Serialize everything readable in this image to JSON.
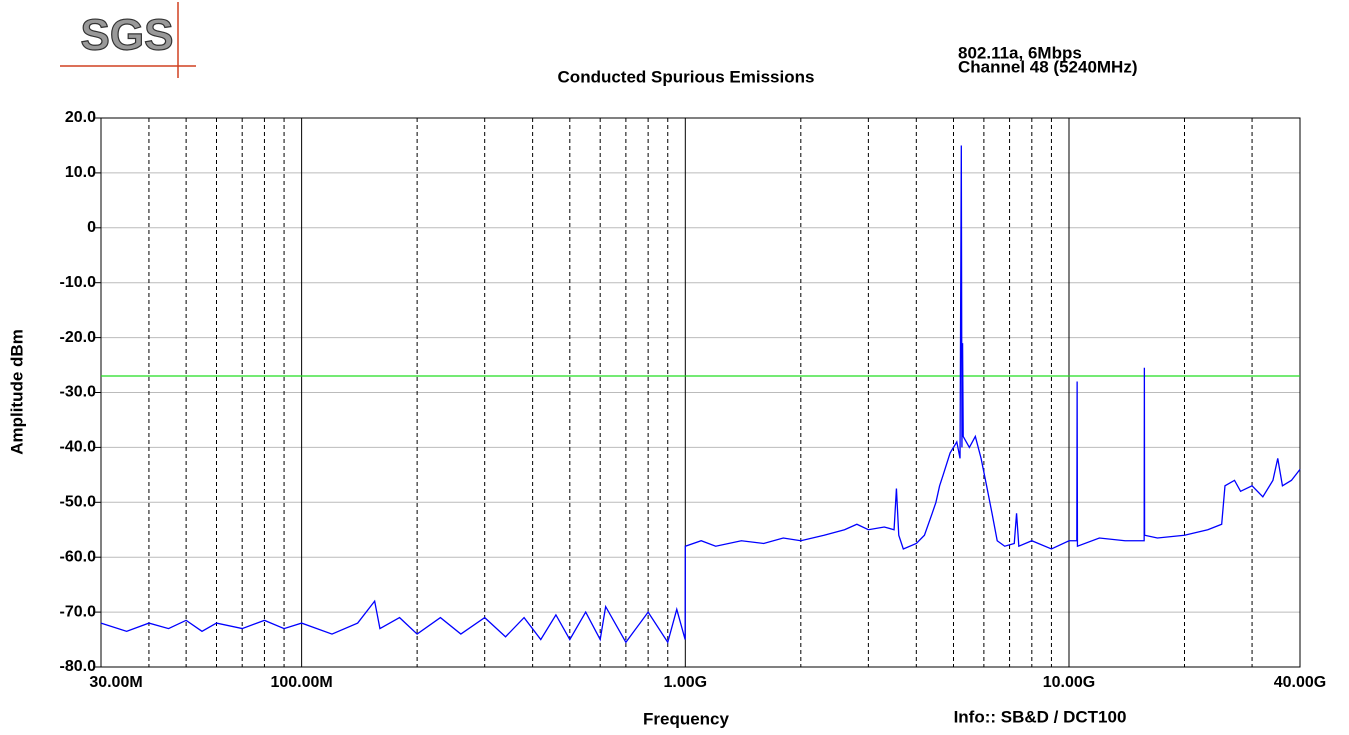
{
  "logo": "SGS",
  "chart_data": {
    "type": "line",
    "title": "Conducted Spurious Emissions",
    "subtitle": [
      "802.11a, 6Mbps",
      "Channel 48 (5240MHz)"
    ],
    "x_label": "Frequency",
    "y_label": "Amplitude dBm",
    "annotation": "Info:: SB&D / DCT100",
    "xscale": "log",
    "xlim": [
      30000000,
      40000000000
    ],
    "ylim": [
      -80,
      20
    ],
    "xticks": [
      {
        "value": 30000000,
        "label": "30.00M"
      },
      {
        "value": 100000000,
        "label": "100.00M"
      },
      {
        "value": 1000000000,
        "label": "1.00G"
      },
      {
        "value": 10000000000,
        "label": "10.00G"
      },
      {
        "value": 40000000000,
        "label": "40.00G"
      }
    ],
    "xminorticks": [
      40000000,
      50000000,
      60000000,
      70000000,
      80000000,
      90000000,
      200000000,
      300000000,
      400000000,
      500000000,
      600000000,
      700000000,
      800000000,
      900000000,
      2000000000,
      3000000000,
      4000000000,
      5000000000,
      6000000000,
      7000000000,
      8000000000,
      9000000000,
      20000000000,
      30000000000
    ],
    "yticks": [
      {
        "value": 20,
        "label": "20.0"
      },
      {
        "value": 10,
        "label": "10.0"
      },
      0,
      {
        "value": -10,
        "label": "-10.0"
      },
      {
        "value": -20,
        "label": "-20.0"
      },
      {
        "value": -30,
        "label": "-30.0"
      },
      {
        "value": -40,
        "label": "-40.0"
      },
      {
        "value": -50,
        "label": "-50.0"
      },
      {
        "value": -60,
        "label": "-60.0"
      },
      {
        "value": -70,
        "label": "-70.0"
      },
      {
        "value": -80,
        "label": "-80.0"
      }
    ],
    "grid": true,
    "hlines": [
      {
        "value": -27,
        "color": "#22dd22"
      }
    ],
    "x": [
      30000000,
      35000000,
      40000000,
      45000000,
      50000000,
      55000000,
      60000000,
      70000000,
      80000000,
      90000000,
      100000000,
      120000000,
      140000000,
      155000000,
      160000000,
      180000000,
      200000000,
      230000000,
      260000000,
      300000000,
      340000000,
      380000000,
      420000000,
      460000000,
      500000000,
      550000000,
      600000000,
      620000000,
      700000000,
      800000000,
      900000000,
      950000000,
      999000000,
      1000000000,
      1100000000,
      1200000000,
      1400000000,
      1600000000,
      1800000000,
      2000000000,
      2300000000,
      2600000000,
      2800000000,
      3000000000,
      3300000000,
      3500000000,
      3550000000,
      3600000000,
      3700000000,
      4000000000,
      4200000000,
      4400000000,
      4500000000,
      4600000000,
      4700000000,
      4900000000,
      5100000000,
      5200000000,
      5240000000,
      5260000000,
      5280000000,
      5300000000,
      5500000000,
      5700000000,
      5900000000,
      6100000000,
      6300000000,
      6500000000,
      6800000000,
      7200000000,
      7300000000,
      7400000000,
      8000000000,
      9000000000,
      10000000000,
      10480000000,
      10500000000,
      10520000000,
      12000000000,
      14000000000,
      15700000000,
      15720000000,
      15740000000,
      17000000000,
      20000000000,
      23000000000,
      25000000000,
      25500000000,
      27000000000,
      28000000000,
      30000000000,
      32000000000,
      34000000000,
      35000000000,
      36000000000,
      38000000000,
      40000000000
    ],
    "series": [
      {
        "color": "#0000ff",
        "values": [
          -72,
          -73.5,
          -72,
          -73,
          -71.5,
          -73.5,
          -72,
          -73,
          -71.5,
          -73,
          -72,
          -74,
          -72,
          -68,
          -73,
          -71,
          -74,
          -71,
          -74,
          -71,
          -74.5,
          -71,
          -75,
          -70.5,
          -75,
          -70,
          -75,
          -69,
          -75.5,
          -70,
          -75.5,
          -69.5,
          -75,
          -58,
          -57,
          -58,
          -57,
          -57.5,
          -56.5,
          -57,
          -56,
          -55,
          -54,
          -55,
          -54.5,
          -55,
          -47.5,
          -56,
          -58.5,
          -57.5,
          -56,
          -52,
          -50,
          -47,
          -45,
          -41,
          -39,
          -42,
          15,
          -40,
          -21,
          -38,
          -40,
          -38,
          -42,
          -47,
          -52,
          -57,
          -58,
          -57.5,
          -52,
          -58,
          -57,
          -58.5,
          -57,
          -57,
          -28,
          -58,
          -56.5,
          -57,
          -57,
          -25.5,
          -56,
          -56.5,
          -56,
          -55,
          -54,
          -47,
          -46,
          -48,
          -47,
          -49,
          -46,
          -42,
          -47,
          -46,
          -44
        ]
      }
    ]
  }
}
